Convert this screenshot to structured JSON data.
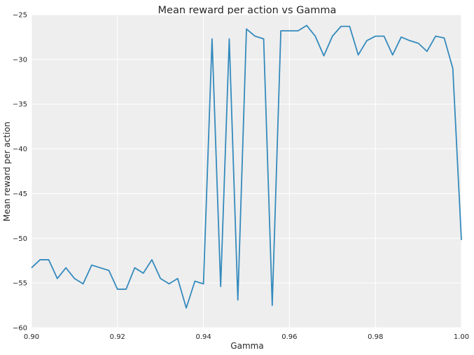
{
  "chart_data": {
    "type": "line",
    "title": "Mean reward per action vs Gamma",
    "xlabel": "Gamma",
    "ylabel": "Mean reward per action",
    "xlim": [
      0.9,
      1.0
    ],
    "ylim": [
      -60,
      -25
    ],
    "xticks": [
      0.9,
      0.92,
      0.94,
      0.96,
      0.98,
      1.0
    ],
    "xtick_labels": [
      "0.90",
      "0.92",
      "0.94",
      "0.96",
      "0.98",
      "1.00"
    ],
    "yticks": [
      -25,
      -30,
      -35,
      -40,
      -45,
      -50,
      -55,
      -60
    ],
    "ytick_labels": [
      "−25",
      "−30",
      "−35",
      "−40",
      "−45",
      "−50",
      "−55",
      "−60"
    ],
    "grid": true,
    "legend": "none",
    "colors": {
      "series": "#348ABD",
      "plot_background": "#EEEEEE",
      "grid": "#FFFFFF"
    },
    "series": [
      {
        "x": [
          0.9,
          0.902,
          0.904,
          0.906,
          0.908,
          0.91,
          0.912,
          0.914,
          0.916,
          0.918,
          0.92,
          0.922,
          0.924,
          0.926,
          0.928,
          0.93,
          0.932,
          0.934,
          0.936,
          0.938,
          0.94,
          0.942,
          0.944,
          0.946,
          0.948,
          0.95,
          0.952,
          0.954,
          0.956,
          0.958,
          0.96,
          0.962,
          0.964,
          0.966,
          0.968,
          0.97,
          0.972,
          0.974,
          0.976,
          0.978,
          0.98,
          0.982,
          0.984,
          0.986,
          0.988,
          0.99,
          0.992,
          0.994,
          0.996,
          0.998,
          1.0
        ],
        "values": [
          -53.3,
          -52.4,
          -52.4,
          -54.5,
          -53.3,
          -54.5,
          -55.1,
          -53.0,
          -53.3,
          -53.6,
          -55.7,
          -55.7,
          -53.3,
          -53.9,
          -52.4,
          -54.5,
          -55.1,
          -54.5,
          -57.8,
          -54.8,
          -55.1,
          -27.7,
          -55.4,
          -27.7,
          -56.9,
          -26.6,
          -27.4,
          -27.7,
          -57.5,
          -26.8,
          -26.8,
          -26.8,
          -26.2,
          -27.4,
          -29.6,
          -27.4,
          -26.3,
          -26.3,
          -29.5,
          -27.9,
          -27.4,
          -27.4,
          -29.5,
          -27.5,
          -27.9,
          -28.2,
          -29.1,
          -27.4,
          -27.6,
          -31.0,
          -50.2
        ]
      }
    ]
  }
}
